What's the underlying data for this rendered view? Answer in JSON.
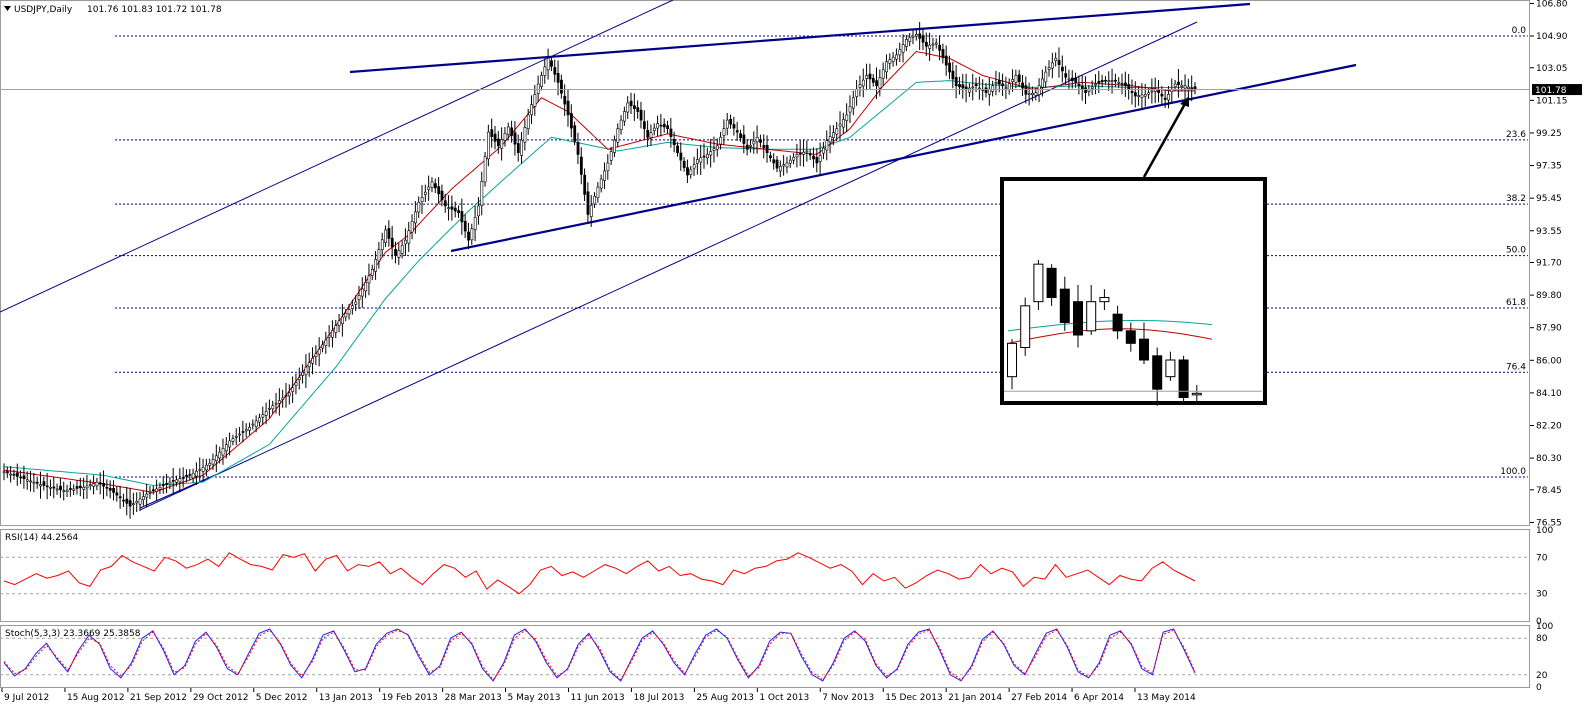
{
  "header": {
    "symbol_label": "USDJPY,Daily",
    "ohlc": "101.76 101.83 101.72 101.78"
  },
  "colors": {
    "candle": "#000000",
    "ma_fast": "#c00000",
    "ma_slow": "#0aa39a",
    "trend": "#00008b",
    "fib": "#00008b",
    "rsi": "#ff0000",
    "stoch_main": "#2020ff",
    "stoch_signal": "#ff0000",
    "level_line": "#a0a0a0",
    "price_box": "#000000"
  },
  "chart_data": [
    {
      "type": "candlestick",
      "name": "USDJPY,Daily",
      "ylim": [
        76.4,
        107.0
      ],
      "y_ticks": [
        "106.80",
        "104.90",
        "103.05",
        "101.15",
        "99.25",
        "97.35",
        "95.45",
        "93.55",
        "91.70",
        "89.80",
        "87.90",
        "86.00",
        "84.10",
        "82.20",
        "80.30",
        "78.45",
        "76.55"
      ],
      "x_ticks": [
        "9 Jul 2012",
        "15 Aug 2012",
        "21 Sep 2012",
        "29 Oct 2012",
        "5 Dec 2012",
        "13 Jan 2013",
        "19 Feb 2013",
        "28 Mar 2013",
        "5 May 2013",
        "11 Jun 2013",
        "18 Jul 2013",
        "25 Aug 2013",
        "1 Oct 2013",
        "7 Nov 2013",
        "15 Dec 2013",
        "21 Jan 2014",
        "27 Feb 2014",
        "6 Apr 2014",
        "13 May 2014"
      ],
      "current_price": "101.78",
      "close_path": [
        [
          0,
          79.5
        ],
        [
          6,
          79.1
        ],
        [
          12,
          78.7
        ],
        [
          18,
          78.4
        ],
        [
          24,
          78.6
        ],
        [
          28,
          78.9
        ],
        [
          33,
          78.3
        ],
        [
          38,
          77.5
        ],
        [
          43,
          78.2
        ],
        [
          50,
          78.9
        ],
        [
          56,
          79.3
        ],
        [
          62,
          80.0
        ],
        [
          68,
          81.3
        ],
        [
          74,
          82.1
        ],
        [
          80,
          83.2
        ],
        [
          86,
          84.1
        ],
        [
          91,
          85.6
        ],
        [
          96,
          86.9
        ],
        [
          101,
          88.3
        ],
        [
          106,
          89.4
        ],
        [
          111,
          91.3
        ],
        [
          115,
          93.6
        ],
        [
          118,
          92.1
        ],
        [
          121,
          93.0
        ],
        [
          125,
          95.2
        ],
        [
          129,
          96.4
        ],
        [
          133,
          95.0
        ],
        [
          137,
          94.6
        ],
        [
          140,
          93.0
        ],
        [
          143,
          95.0
        ],
        [
          146,
          99.3
        ],
        [
          149,
          98.5
        ],
        [
          152,
          99.6
        ],
        [
          155,
          98.1
        ],
        [
          158,
          100.3
        ],
        [
          161,
          102.1
        ],
        [
          164,
          103.6
        ],
        [
          167,
          102.2
        ],
        [
          170,
          100.3
        ],
        [
          173,
          98.0
        ],
        [
          176,
          94.5
        ],
        [
          179,
          96.1
        ],
        [
          182,
          97.5
        ],
        [
          185,
          99.5
        ],
        [
          188,
          101.0
        ],
        [
          191,
          100.5
        ],
        [
          194,
          99.0
        ],
        [
          197,
          99.8
        ],
        [
          200,
          99.5
        ],
        [
          203,
          98.1
        ],
        [
          206,
          96.8
        ],
        [
          209,
          97.7
        ],
        [
          212,
          98.0
        ],
        [
          215,
          98.5
        ],
        [
          218,
          100.0
        ],
        [
          221,
          99.3
        ],
        [
          224,
          98.3
        ],
        [
          227,
          99.0
        ],
        [
          230,
          98.1
        ],
        [
          233,
          97.2
        ],
        [
          236,
          97.5
        ],
        [
          239,
          98.0
        ],
        [
          242,
          98.2
        ],
        [
          245,
          97.5
        ],
        [
          248,
          98.8
        ],
        [
          251,
          99.5
        ],
        [
          254,
          100.3
        ],
        [
          257,
          101.8
        ],
        [
          260,
          102.6
        ],
        [
          263,
          102.0
        ],
        [
          266,
          103.4
        ],
        [
          269,
          103.8
        ],
        [
          272,
          104.7
        ],
        [
          275,
          105.0
        ],
        [
          278,
          104.3
        ],
        [
          281,
          104.5
        ],
        [
          284,
          103.2
        ],
        [
          287,
          102.0
        ],
        [
          290,
          101.8
        ],
        [
          293,
          102.0
        ],
        [
          296,
          101.6
        ],
        [
          299,
          102.2
        ],
        [
          302,
          101.9
        ],
        [
          305,
          102.6
        ],
        [
          308,
          101.5
        ],
        [
          311,
          101.6
        ],
        [
          314,
          102.8
        ],
        [
          317,
          103.6
        ],
        [
          320,
          102.5
        ],
        [
          323,
          102.2
        ],
        [
          326,
          101.6
        ],
        [
          329,
          102.1
        ],
        [
          332,
          102.3
        ],
        [
          335,
          102.3
        ],
        [
          338,
          102.0
        ],
        [
          341,
          101.4
        ],
        [
          344,
          101.5
        ],
        [
          347,
          101.8
        ],
        [
          350,
          101.2
        ],
        [
          353,
          102.1
        ],
        [
          356,
          102.0
        ],
        [
          359,
          101.78
        ]
      ],
      "ma_fast_path": [
        [
          0,
          79.6
        ],
        [
          30,
          78.8
        ],
        [
          45,
          78.3
        ],
        [
          60,
          79.3
        ],
        [
          80,
          82.6
        ],
        [
          100,
          88.0
        ],
        [
          115,
          92.3
        ],
        [
          122,
          93.3
        ],
        [
          135,
          96.0
        ],
        [
          150,
          98.5
        ],
        [
          162,
          101.3
        ],
        [
          170,
          100.5
        ],
        [
          182,
          98.3
        ],
        [
          200,
          99.2
        ],
        [
          215,
          98.6
        ],
        [
          230,
          98.3
        ],
        [
          245,
          98.0
        ],
        [
          255,
          99.5
        ],
        [
          265,
          102.0
        ],
        [
          275,
          104.0
        ],
        [
          285,
          103.6
        ],
        [
          295,
          102.6
        ],
        [
          310,
          101.8
        ],
        [
          325,
          102.2
        ],
        [
          340,
          102.0
        ],
        [
          352,
          101.7
        ],
        [
          359,
          101.7
        ]
      ],
      "ma_slow_path": [
        [
          0,
          79.8
        ],
        [
          30,
          79.3
        ],
        [
          45,
          78.7
        ],
        [
          60,
          78.9
        ],
        [
          80,
          81.1
        ],
        [
          100,
          85.6
        ],
        [
          115,
          89.6
        ],
        [
          125,
          91.8
        ],
        [
          140,
          94.7
        ],
        [
          155,
          97.3
        ],
        [
          165,
          99.0
        ],
        [
          175,
          98.6
        ],
        [
          185,
          98.2
        ],
        [
          200,
          98.7
        ],
        [
          215,
          98.4
        ],
        [
          230,
          98.3
        ],
        [
          245,
          98.3
        ],
        [
          255,
          99.0
        ],
        [
          265,
          100.6
        ],
        [
          275,
          102.2
        ],
        [
          285,
          102.3
        ],
        [
          295,
          102.1
        ],
        [
          310,
          101.9
        ],
        [
          325,
          102.0
        ],
        [
          340,
          101.9
        ],
        [
          352,
          101.9
        ],
        [
          359,
          101.9
        ]
      ],
      "fib_levels": [
        {
          "label": "0.0",
          "price": 104.9
        },
        {
          "label": "23.6",
          "price": 98.85
        },
        {
          "label": "38.2",
          "price": 95.1
        },
        {
          "label": "50.0",
          "price": 92.1
        },
        {
          "label": "61.8",
          "price": 89.05
        },
        {
          "label": "76.4",
          "price": 85.3
        },
        {
          "label": "100.0",
          "price": 79.2
        }
      ]
    },
    {
      "type": "line",
      "name": "RSI(14) 44.2564",
      "ylim": [
        0,
        100
      ],
      "y_ticks": [
        "100",
        "70",
        "30",
        "0"
      ],
      "levels": [
        70,
        30
      ],
      "values": [
        44,
        40,
        46,
        52,
        47,
        50,
        55,
        42,
        38,
        56,
        60,
        72,
        65,
        60,
        55,
        70,
        66,
        58,
        62,
        68,
        60,
        75,
        68,
        62,
        60,
        56,
        73,
        70,
        74,
        55,
        68,
        72,
        55,
        62,
        60,
        65,
        52,
        58,
        48,
        40,
        52,
        62,
        58,
        48,
        55,
        35,
        45,
        38,
        30,
        40,
        56,
        60,
        50,
        54,
        48,
        55,
        62,
        58,
        52,
        60,
        66,
        55,
        60,
        50,
        52,
        46,
        44,
        40,
        56,
        52,
        58,
        60,
        66,
        68,
        75,
        70,
        64,
        58,
        62,
        55,
        40,
        52,
        44,
        48,
        36,
        42,
        50,
        56,
        52,
        46,
        48,
        62,
        52,
        58,
        54,
        38,
        48,
        46,
        62,
        48,
        52,
        56,
        48,
        40,
        50,
        46,
        44,
        58,
        65,
        56,
        50,
        44
      ]
    },
    {
      "type": "line",
      "name": "Stoch(5,3,3) 23.3669 25.3858",
      "ylim": [
        0,
        100
      ],
      "y_ticks": [
        "100",
        "80",
        "20",
        "0"
      ],
      "levels": [
        80,
        20
      ],
      "series": [
        {
          "name": "23.3669",
          "values": [
            40,
            18,
            30,
            55,
            72,
            45,
            25,
            60,
            85,
            70,
            30,
            15,
            40,
            80,
            92,
            60,
            20,
            35,
            75,
            90,
            65,
            30,
            20,
            55,
            88,
            95,
            70,
            35,
            15,
            45,
            85,
            92,
            60,
            25,
            30,
            70,
            88,
            95,
            85,
            50,
            20,
            35,
            80,
            90,
            70,
            30,
            10,
            40,
            85,
            95,
            75,
            40,
            15,
            30,
            70,
            88,
            60,
            25,
            10,
            45,
            80,
            92,
            70,
            40,
            20,
            55,
            85,
            95,
            80,
            45,
            15,
            35,
            75,
            90,
            88,
            50,
            20,
            10,
            40,
            80,
            92,
            75,
            35,
            15,
            30,
            70,
            90,
            95,
            60,
            20,
            10,
            35,
            78,
            92,
            70,
            35,
            20,
            55,
            88,
            95,
            65,
            25,
            15,
            40,
            85,
            92,
            70,
            30,
            20,
            90,
            95,
            60,
            23
          ]
        },
        {
          "name": "25.3858",
          "values": [
            42,
            22,
            28,
            50,
            68,
            48,
            28,
            56,
            80,
            72,
            35,
            18,
            36,
            75,
            90,
            64,
            24,
            32,
            70,
            88,
            68,
            34,
            22,
            50,
            84,
            93,
            72,
            38,
            18,
            42,
            80,
            90,
            64,
            28,
            28,
            66,
            85,
            93,
            86,
            54,
            24,
            32,
            75,
            88,
            72,
            34,
            12,
            36,
            80,
            93,
            78,
            44,
            18,
            28,
            66,
            85,
            64,
            28,
            12,
            42,
            76,
            90,
            72,
            44,
            22,
            50,
            82,
            93,
            82,
            48,
            18,
            32,
            70,
            88,
            88,
            54,
            24,
            12,
            36,
            76,
            90,
            78,
            38,
            18,
            28,
            66,
            87,
            93,
            64,
            24,
            12,
            32,
            74,
            90,
            72,
            38,
            22,
            50,
            84,
            93,
            68,
            28,
            16,
            36,
            80,
            90,
            72,
            34,
            22,
            86,
            93,
            64,
            25
          ]
        }
      ]
    }
  ]
}
